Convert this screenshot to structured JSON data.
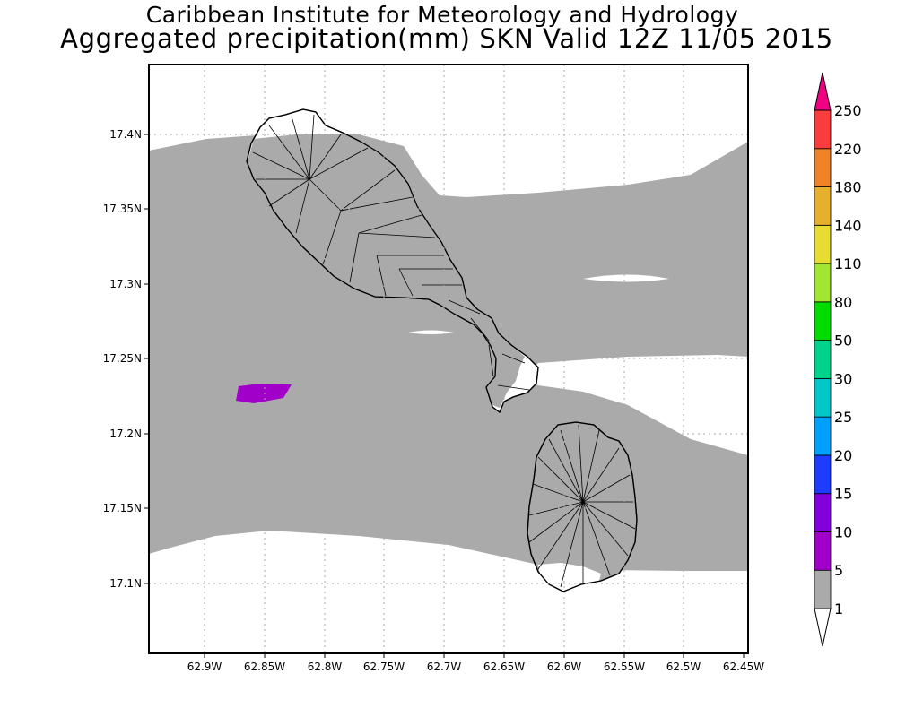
{
  "header": {
    "institute": "Caribbean Institute for Meteorology and Hydrology",
    "title": "Aggregated precipitation(mm) SKN Valid 12Z 11/05 2015"
  },
  "map": {
    "y_ticks": [
      "17.4N",
      "17.35N",
      "17.3N",
      "17.25N",
      "17.2N",
      "17.15N",
      "17.1N"
    ],
    "x_ticks": [
      "62.9W",
      "62.85W",
      "62.8W",
      "62.75W",
      "62.7W",
      "62.65W",
      "62.6W",
      "62.55W",
      "62.5W",
      "62.45W"
    ],
    "frame_color": "#000000",
    "grid": "dotted",
    "islands": [
      "St. Kitts",
      "Nevis"
    ]
  },
  "colorbar": {
    "labels": [
      "1",
      "5",
      "10",
      "15",
      "20",
      "25",
      "30",
      "50",
      "80",
      "110",
      "140",
      "180",
      "220",
      "250"
    ],
    "colors": [
      "#aaaaaa",
      "#a000c8",
      "#8200dc",
      "#1e3cff",
      "#00a0ff",
      "#00c8c8",
      "#00d28c",
      "#00dc00",
      "#a0e632",
      "#e6dc32",
      "#e6af2d",
      "#f08228",
      "#fa3c3c",
      "#f00082"
    ],
    "under_color": "#ffffff",
    "over_color": "#f00082"
  }
}
